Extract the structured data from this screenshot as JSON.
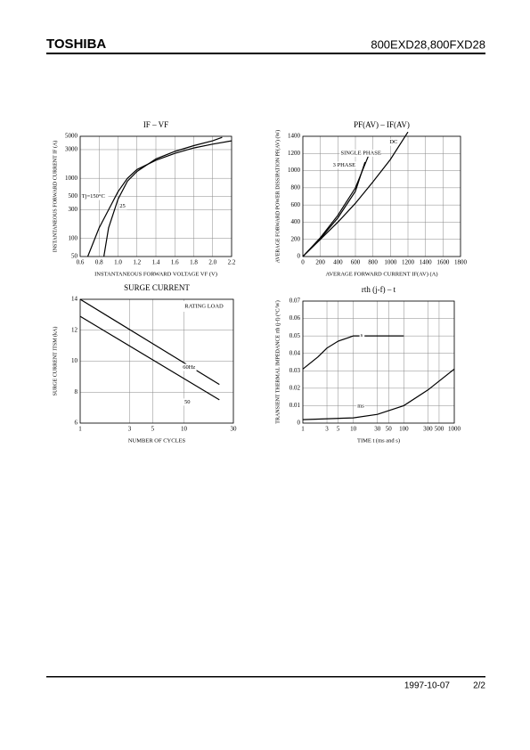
{
  "header": {
    "logo": "TOSHIBA",
    "part_numbers": "800EXD28,800FXD28"
  },
  "footer": {
    "date": "1997-10-07",
    "page": "2/2"
  },
  "chart_data": [
    {
      "type": "line",
      "title": "IF – VF",
      "x_label": "INSTANTANEOUS FORWARD VOLTAGE VF (V)",
      "y_label": "INSTANTANEOUS FORWARD CURRENT IF (A)",
      "xlim": [
        0.6,
        2.2
      ],
      "xticks": [
        0.6,
        0.8,
        {
          "value": 1,
          "label": "1.0"
        },
        1.2,
        1.4,
        1.6,
        1.8,
        {
          "value": 2,
          "label": "2.0"
        },
        2.2
      ],
      "ylim": [
        50,
        5000
      ],
      "yticks": [
        50,
        100,
        300,
        500,
        1000,
        3000,
        5000
      ],
      "ylog": true,
      "grid": true,
      "series": [
        {
          "name": "Tj=150°C",
          "color": "#000000",
          "x": [
            0.68,
            0.8,
            0.9,
            1.0,
            1.1,
            1.2,
            1.4,
            1.6,
            1.8,
            2.0,
            2.2
          ],
          "values": [
            50,
            150,
            300,
            600,
            1000,
            1400,
            2000,
            2600,
            3200,
            3700,
            4200
          ]
        },
        {
          "name": "25",
          "color": "#000000",
          "x": [
            0.85,
            0.9,
            1.0,
            1.1,
            1.2,
            1.4,
            1.6,
            1.8,
            2.0,
            2.1
          ],
          "values": [
            50,
            150,
            450,
            900,
            1300,
            2100,
            2800,
            3500,
            4200,
            4800
          ]
        }
      ]
    },
    {
      "type": "line",
      "title": "PF(AV) – IF(AV)",
      "x_label": "AVERAGE FORWARD CURRENT IF(AV) (A)",
      "y_label": "AVERAGE FORWARD POWER DISSIPATION PF(AV) (W)",
      "xlim": [
        0,
        1800
      ],
      "xticks": [
        0,
        200,
        400,
        600,
        800,
        1000,
        1200,
        1400,
        1600,
        1800
      ],
      "ylim": [
        0,
        1400
      ],
      "yticks": [
        0,
        200,
        400,
        600,
        800,
        1000,
        1200,
        1400
      ],
      "grid": true,
      "series": [
        {
          "name": "DC",
          "color": "#000000",
          "x": [
            0,
            200,
            400,
            600,
            800,
            1000,
            1200
          ],
          "values": [
            0,
            200,
            400,
            620,
            870,
            1130,
            1450
          ]
        },
        {
          "name": "SINGLE PHASE",
          "color": "#000000",
          "x": [
            0,
            200,
            400,
            600,
            760
          ],
          "values": [
            0,
            220,
            480,
            800,
            1200
          ]
        },
        {
          "name": "3 PHASE",
          "color": "#000000",
          "x": [
            0,
            200,
            400,
            600,
            710
          ],
          "values": [
            0,
            210,
            450,
            760,
            1100
          ]
        }
      ]
    },
    {
      "type": "line",
      "title": "SURGE CURRENT",
      "x_label": "NUMBER OF CYCLES",
      "y_label": "SURGE CURRENT ITSM (kA)",
      "annotation": "RATING LOAD",
      "xlim": [
        1,
        30
      ],
      "xticks": [
        1,
        3,
        5,
        10,
        30
      ],
      "xlog": true,
      "ylim": [
        6,
        14
      ],
      "yticks": [
        6,
        8,
        10,
        12,
        14
      ],
      "grid": true,
      "series": [
        {
          "name": "60Hz",
          "color": "#000000",
          "x": [
            1,
            22
          ],
          "values": [
            14,
            8.5
          ]
        },
        {
          "name": "50",
          "color": "#000000",
          "x": [
            1,
            22
          ],
          "values": [
            12.9,
            7.5
          ]
        }
      ]
    },
    {
      "type": "line",
      "title": "rth (j-f) – t",
      "x_label": "TIME t (ms and s)",
      "y_label": "TRANSIENT THERMAL IMPEDANCE rth (j-f) (°C/W)",
      "xlim": [
        1,
        1000
      ],
      "xticks": [
        1,
        3,
        5,
        10,
        30,
        50,
        100,
        300,
        500,
        1000
      ],
      "xlog": true,
      "ylim": [
        0,
        0.07
      ],
      "yticks": [
        0,
        0.01,
        0.02,
        0.03,
        0.04,
        0.05,
        0.06,
        0.07
      ],
      "grid": true,
      "series": [
        {
          "name": "s",
          "color": "#000000",
          "x": [
            1,
            2,
            3,
            5,
            8,
            10,
            100
          ],
          "values": [
            0.031,
            0.038,
            0.043,
            0.047,
            0.049,
            0.05,
            0.05
          ]
        },
        {
          "name": "ms",
          "color": "#000000",
          "x": [
            1,
            10,
            30,
            100,
            300,
            1000
          ],
          "values": [
            0.002,
            0.003,
            0.005,
            0.01,
            0.019,
            0.031
          ]
        }
      ]
    }
  ]
}
